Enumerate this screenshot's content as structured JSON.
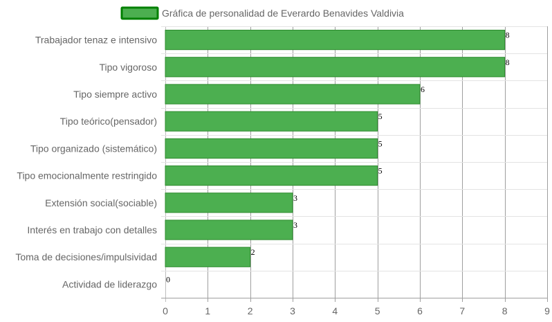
{
  "chart_data": {
    "type": "bar",
    "orientation": "horizontal",
    "categories": [
      "Trabajador tenaz e intensivo",
      "Tipo vigoroso",
      "Tipo siempre activo",
      "Tipo teórico(pensador)",
      "Tipo organizado (sistemático)",
      "Tipo emocionalmente restringido",
      "Extensión social(sociable)",
      "Interés en trabajo con detalles",
      "Toma de decisiones/impulsividad",
      "Actividad de liderazgo"
    ],
    "series": [
      {
        "name": "Gráfica de personalidad de Everardo Benavides Valdivia",
        "values": [
          8,
          8,
          6,
          5,
          5,
          5,
          3,
          3,
          2,
          0
        ]
      }
    ],
    "xlim": [
      0,
      9
    ],
    "x_ticks": [
      "0",
      "1",
      "2",
      "3",
      "4",
      "5",
      "6",
      "7",
      "8",
      "9"
    ],
    "grid": true,
    "legend_position": "top",
    "bar_color": "#4caf50",
    "bar_border_color": "#2e8b2e",
    "legend_border_color": "#008000"
  }
}
